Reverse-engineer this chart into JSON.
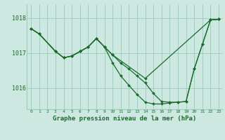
{
  "background_color": "#cce8e0",
  "grid_color": "#99ccbb",
  "line_color": "#1a6b2a",
  "marker_color": "#1a6b2a",
  "xlabel": "Graphe pression niveau de la mer (hPa)",
  "xlabel_fontsize": 6.5,
  "yticks": [
    1016,
    1017,
    1018
  ],
  "ylim": [
    1015.4,
    1018.4
  ],
  "xlim": [
    -0.5,
    23.5
  ],
  "xticks": [
    0,
    1,
    2,
    3,
    4,
    5,
    6,
    7,
    8,
    9,
    10,
    11,
    12,
    13,
    14,
    15,
    16,
    17,
    18,
    19,
    20,
    21,
    22,
    23
  ],
  "series": [
    {
      "x": [
        0,
        1,
        3,
        4,
        5,
        6,
        7,
        8,
        9,
        10,
        14,
        22,
        23
      ],
      "y": [
        1017.7,
        1017.55,
        1017.05,
        1016.87,
        1016.92,
        1017.05,
        1017.18,
        1017.42,
        1017.18,
        1016.95,
        1016.28,
        1017.95,
        1017.97
      ]
    },
    {
      "x": [
        0,
        1,
        3,
        4,
        5,
        6,
        7,
        8,
        9,
        10,
        11,
        12,
        13,
        14,
        15,
        16,
        17,
        18,
        19,
        20,
        21,
        22,
        23
      ],
      "y": [
        1017.7,
        1017.55,
        1017.05,
        1016.87,
        1016.92,
        1017.05,
        1017.18,
        1017.42,
        1017.18,
        1016.95,
        1016.72,
        1016.55,
        1016.35,
        1016.15,
        1015.85,
        1015.62,
        1015.6,
        1015.6,
        1015.62,
        1016.55,
        1017.25,
        1017.95,
        1017.97
      ]
    },
    {
      "x": [
        0,
        1,
        3,
        4,
        5,
        6,
        7,
        8,
        9,
        10,
        11,
        12,
        13,
        14,
        15,
        16,
        17,
        18,
        19,
        20,
        21,
        22,
        23
      ],
      "y": [
        1017.7,
        1017.55,
        1017.05,
        1016.87,
        1016.92,
        1017.05,
        1017.18,
        1017.42,
        1017.18,
        1016.72,
        1016.35,
        1016.08,
        1015.82,
        1015.6,
        1015.55,
        1015.55,
        1015.58,
        1015.6,
        1015.62,
        1016.55,
        1017.25,
        1017.95,
        1017.97
      ]
    }
  ]
}
